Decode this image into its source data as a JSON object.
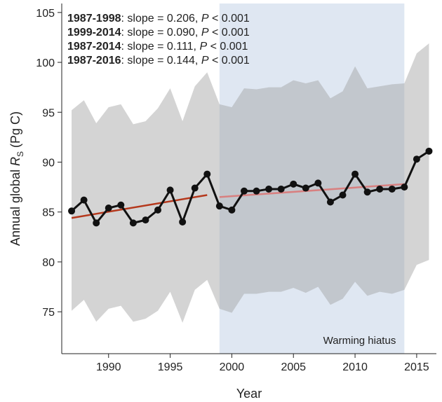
{
  "chart_data": {
    "type": "line",
    "xlabel": "Year",
    "ylabel": {
      "pre": "Annual global ",
      "sym": "R",
      "sub": "S",
      "post": " (Pg C)"
    },
    "x": [
      1987,
      1988,
      1989,
      1990,
      1991,
      1992,
      1993,
      1994,
      1995,
      1996,
      1997,
      1998,
      1999,
      2000,
      2001,
      2002,
      2003,
      2004,
      2005,
      2006,
      2007,
      2008,
      2009,
      2010,
      2011,
      2012,
      2013,
      2014,
      2015,
      2016
    ],
    "values": [
      85.1,
      86.2,
      83.9,
      85.4,
      85.7,
      83.9,
      84.2,
      85.2,
      87.2,
      84.0,
      87.4,
      88.8,
      85.6,
      85.2,
      87.1,
      87.1,
      87.3,
      87.3,
      87.8,
      87.4,
      87.9,
      86.0,
      86.7,
      88.8,
      87.0,
      87.3,
      87.3,
      87.5,
      90.3,
      91.1
    ],
    "upper": [
      95.2,
      96.2,
      93.9,
      95.5,
      95.8,
      93.8,
      94.1,
      95.4,
      97.4,
      94.1,
      97.6,
      99.0,
      95.8,
      95.5,
      97.4,
      97.3,
      97.5,
      97.5,
      98.2,
      97.9,
      98.2,
      96.4,
      97.1,
      99.6,
      97.4,
      97.6,
      97.8,
      97.9,
      100.9,
      101.9
    ],
    "lower": [
      75.1,
      76.2,
      74.0,
      75.3,
      75.6,
      74.0,
      74.3,
      75.1,
      77.0,
      73.9,
      77.2,
      78.2,
      75.3,
      74.9,
      76.8,
      76.8,
      77.0,
      77.0,
      77.4,
      76.9,
      77.5,
      75.7,
      76.3,
      78.0,
      76.6,
      77.0,
      76.8,
      77.2,
      79.7,
      80.2
    ],
    "color": "#111111",
    "band_color": "#a0a0a0",
    "trends": [
      {
        "x": [
          1987,
          1998
        ],
        "values": [
          84.4,
          86.7
        ],
        "color": "#b5381c"
      },
      {
        "x": [
          1999,
          2014
        ],
        "values": [
          86.5,
          87.8
        ],
        "color": "#d88080"
      }
    ],
    "hiatus": {
      "range": [
        1999,
        2014
      ],
      "label": "Warming hiatus",
      "color": "#dfe7f2"
    },
    "annotations": [
      {
        "period": "1987-1998",
        "text": ": slope = 0.206, ",
        "p": "P",
        "test": " < 0.001"
      },
      {
        "period": "1999-2014",
        "text": ": slope = 0.090, ",
        "p": "P",
        "test": " < 0.001"
      },
      {
        "period": "1987-2014",
        "text": ": slope = 0.111, ",
        "p": "P",
        "test": " < 0.001"
      },
      {
        "period": "1987-2016",
        "text": ": slope = 0.144, ",
        "p": "P",
        "test": " < 0.001"
      }
    ],
    "xlim": [
      1986.2,
      2016.6
    ],
    "ylim": [
      70.8,
      105.9
    ],
    "xticks": [
      1990,
      1995,
      2000,
      2005,
      2010,
      2015
    ],
    "yticks": [
      75,
      80,
      85,
      90,
      95,
      100,
      105
    ]
  }
}
